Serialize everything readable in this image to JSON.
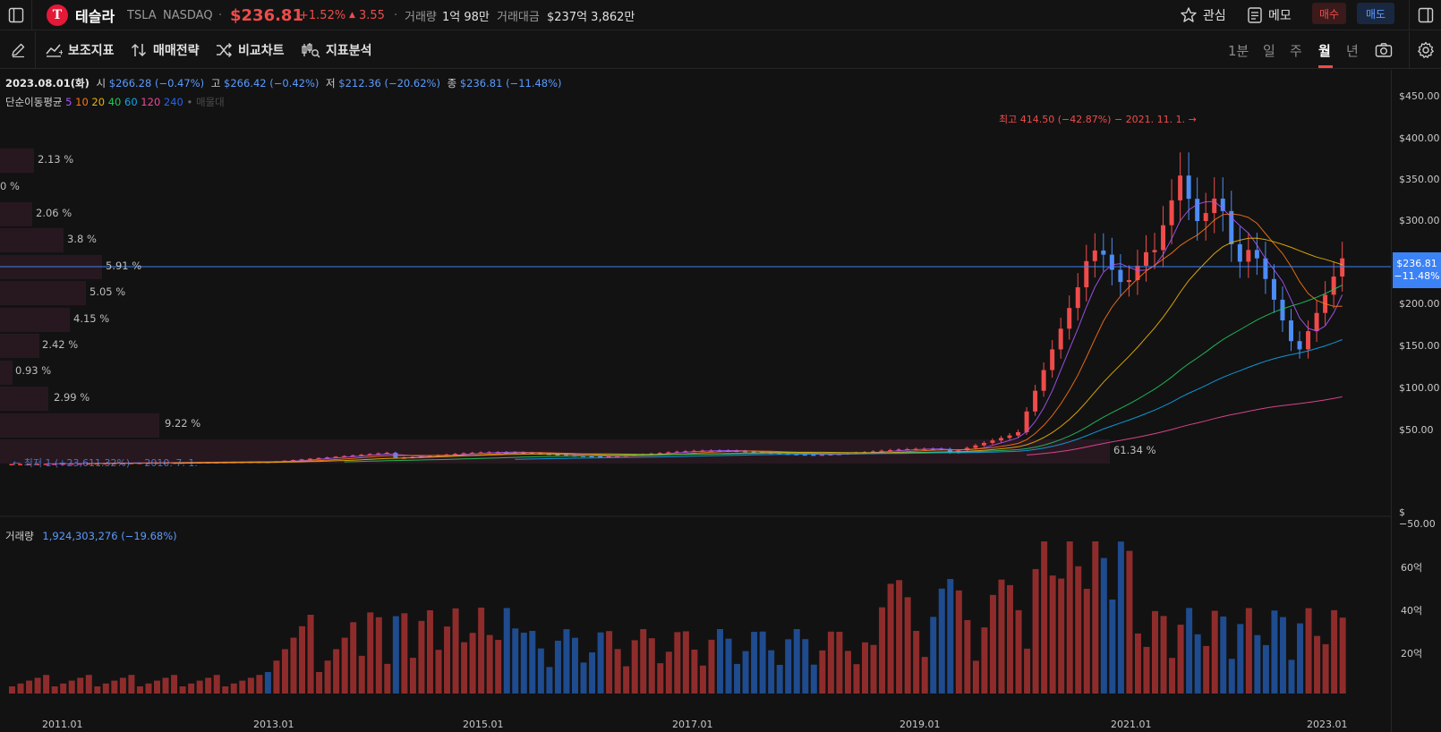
{
  "header": {
    "logo_letter": "T",
    "name": "테슬라",
    "ticker": "TSLA",
    "exchange": "NASDAQ",
    "price": "$236.81",
    "change_pct": "+1.52%",
    "change_abs": "3.55",
    "volume_label": "거래량",
    "volume_value": "1억 98만",
    "turnover_label": "거래대금",
    "turnover_value": "$237억 3,862만",
    "watch_label": "관심",
    "memo_label": "메모",
    "buy_label": "매수",
    "sell_label": "매도"
  },
  "toolbar": {
    "items": [
      "보조지표",
      "매매전략",
      "비교차트",
      "지표분석"
    ],
    "periods": [
      "1분",
      "일",
      "주",
      "월",
      "년"
    ],
    "active_period": "월"
  },
  "ohlc": {
    "date": "2023.08.01(화)",
    "open_label": "시",
    "open": "$266.28 (−0.47%)",
    "high_label": "고",
    "high": "$266.42 (−0.42%)",
    "low_label": "저",
    "low": "$212.36 (−20.62%)",
    "close_label": "종",
    "close": "$236.81 (−11.48%)"
  },
  "ma": {
    "label": "단순이동평균",
    "periods": [
      "5",
      "10",
      "20",
      "40",
      "60",
      "120",
      "240"
    ],
    "colors": [
      "#a855f7",
      "#f97316",
      "#eab308",
      "#22c55e",
      "#0ea5e9",
      "#ec4899",
      "#2563eb"
    ],
    "extra": "매물대"
  },
  "annotations": {
    "high_marker": "최고 414.50 (−42.87%) − 2021. 11. 1. →",
    "low_marker": "← 최저 1 (+23,611.32%) − 2010. 7. 1."
  },
  "price_axis": [
    "$450.00",
    "$400.00",
    "$350.00",
    "$300.00",
    "$250.00",
    "$200.00",
    "$150.00",
    "$100.00",
    "$50.00",
    "$−50.00"
  ],
  "current_tag": {
    "price": "$236.81",
    "pct": "−11.48%"
  },
  "volume_panel": {
    "label": "거래량",
    "value": "1,924,303,276 (−19.68%)",
    "axis": [
      "60억",
      "40억",
      "20억"
    ]
  },
  "x_axis": [
    "2011.01",
    "2013.01",
    "2015.01",
    "2017.01",
    "2019.01",
    "2021.01",
    "2023.01"
  ],
  "volume_profile": [
    "2.13 %",
    "0 %",
    "2.06 %",
    "3.8 %",
    "5.91 %",
    "5.05 %",
    "4.15 %",
    "2.42 %",
    "0.93 %",
    "2.99 %",
    "9.22 %",
    "61.34 %"
  ],
  "colors": {
    "up": "#f04b4b",
    "down": "#4c8cf5",
    "vol_up": "#8e2c2c",
    "vol_down": "#1f4b8f",
    "accent": "#3b82f6"
  }
}
